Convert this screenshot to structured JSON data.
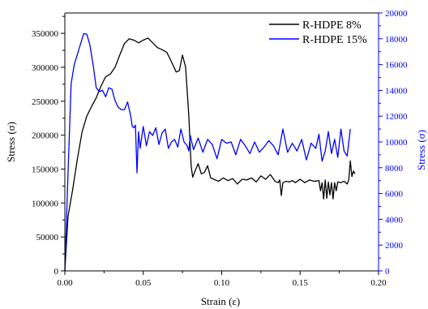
{
  "colors": {
    "left_axis": "#000000",
    "right_axis": "#0000ff",
    "series_8": "#000000",
    "series_15": "#0000ff"
  },
  "chart_data": {
    "type": "line",
    "xlabel": "Strain (ε)",
    "ylabel_left": "Stress (σ)",
    "ylabel_right": "Stress (σ)",
    "xlim": [
      0,
      0.2
    ],
    "ylim_left": [
      0,
      380000
    ],
    "ylim_right": [
      0,
      20000
    ],
    "x_ticks": [
      "0.00",
      "0.05",
      "0.10",
      "0.15",
      "0.20"
    ],
    "y_left_ticks": [
      "0",
      "50000",
      "100000",
      "150000",
      "200000",
      "250000",
      "300000",
      "350000"
    ],
    "y_right_ticks": [
      "0",
      "2000",
      "4000",
      "6000",
      "8000",
      "10000",
      "12000",
      "14000",
      "16000",
      "18000",
      "20000"
    ],
    "legend_position": "top-right",
    "grid": false,
    "series": [
      {
        "name": "R-HDPE 8%",
        "axis": "left",
        "color": "#000000",
        "x": [
          0,
          0.002,
          0.005,
          0.008,
          0.011,
          0.014,
          0.017,
          0.02,
          0.023,
          0.026,
          0.029,
          0.032,
          0.035,
          0.038,
          0.041,
          0.044,
          0.047,
          0.05,
          0.053,
          0.056,
          0.059,
          0.062,
          0.065,
          0.068,
          0.071,
          0.073,
          0.075,
          0.077,
          0.079,
          0.0805,
          0.0815,
          0.083,
          0.085,
          0.087,
          0.089,
          0.091,
          0.093,
          0.095,
          0.098,
          0.101,
          0.104,
          0.107,
          0.11,
          0.113,
          0.116,
          0.119,
          0.122,
          0.125,
          0.128,
          0.131,
          0.134,
          0.136,
          0.137,
          0.138,
          0.139,
          0.141,
          0.143,
          0.145,
          0.147,
          0.15,
          0.153,
          0.156,
          0.159,
          0.162,
          0.163,
          0.164,
          0.165,
          0.166,
          0.167,
          0.168,
          0.169,
          0.17,
          0.171,
          0.172,
          0.173,
          0.174,
          0.176,
          0.178,
          0.18,
          0.181,
          0.182,
          0.183,
          0.184,
          0.185
        ],
        "y": [
          0,
          80000,
          120000,
          165000,
          205000,
          228000,
          242000,
          255000,
          272000,
          286000,
          290000,
          300000,
          318000,
          335000,
          342000,
          340000,
          336000,
          340000,
          343000,
          336000,
          329000,
          326000,
          322000,
          308000,
          293000,
          295000,
          318000,
          300000,
          230000,
          155000,
          138000,
          147000,
          158000,
          143000,
          145000,
          155000,
          137000,
          135000,
          132000,
          137000,
          133000,
          136000,
          128000,
          135000,
          134000,
          137000,
          131000,
          140000,
          135000,
          142000,
          132000,
          130000,
          134000,
          111000,
          130000,
          132000,
          131000,
          133000,
          130000,
          135000,
          130000,
          134000,
          132000,
          133000,
          118000,
          130000,
          106000,
          134000,
          107000,
          131000,
          112000,
          130000,
          106000,
          130000,
          118000,
          131000,
          130000,
          132000,
          128000,
          134000,
          162000,
          139000,
          147000,
          143000
        ]
      },
      {
        "name": "R-HDPE 15%",
        "axis": "right",
        "color": "#0000ff",
        "x": [
          0,
          0.002,
          0.004,
          0.006,
          0.008,
          0.01,
          0.012,
          0.014,
          0.016,
          0.018,
          0.02,
          0.022,
          0.024,
          0.026,
          0.028,
          0.03,
          0.032,
          0.034,
          0.036,
          0.038,
          0.04,
          0.042,
          0.043,
          0.044,
          0.045,
          0.046,
          0.047,
          0.048,
          0.05,
          0.052,
          0.054,
          0.056,
          0.058,
          0.06,
          0.062,
          0.064,
          0.066,
          0.068,
          0.07,
          0.072,
          0.074,
          0.076,
          0.078,
          0.079,
          0.08,
          0.082,
          0.085,
          0.088,
          0.091,
          0.094,
          0.097,
          0.1,
          0.103,
          0.106,
          0.109,
          0.112,
          0.115,
          0.118,
          0.121,
          0.124,
          0.127,
          0.13,
          0.133,
          0.136,
          0.139,
          0.142,
          0.145,
          0.148,
          0.151,
          0.154,
          0.157,
          0.16,
          0.162,
          0.164,
          0.166,
          0.168,
          0.17,
          0.172,
          0.174,
          0.176,
          0.178,
          0.18,
          0.182
        ],
        "y": [
          0,
          7500,
          14500,
          16000,
          16800,
          17600,
          18400,
          18350,
          17500,
          16000,
          14200,
          13900,
          14000,
          13500,
          14200,
          14100,
          13200,
          12700,
          12500,
          12500,
          13100,
          12000,
          11200,
          11100,
          11300,
          7600,
          10800,
          9500,
          11200,
          9700,
          10800,
          10500,
          11100,
          9800,
          10700,
          11000,
          9500,
          10000,
          10200,
          9600,
          11000,
          10000,
          9700,
          9300,
          10500,
          9400,
          10300,
          9200,
          10200,
          9800,
          8700,
          10200,
          9900,
          10000,
          9000,
          10200,
          9700,
          9100,
          10000,
          9200,
          9600,
          10100,
          9700,
          9000,
          11000,
          9200,
          9900,
          9300,
          10200,
          8600,
          9900,
          9500,
          10600,
          8500,
          9300,
          10800,
          9100,
          10200,
          8800,
          11000,
          9300,
          8900,
          11000
        ]
      }
    ]
  }
}
